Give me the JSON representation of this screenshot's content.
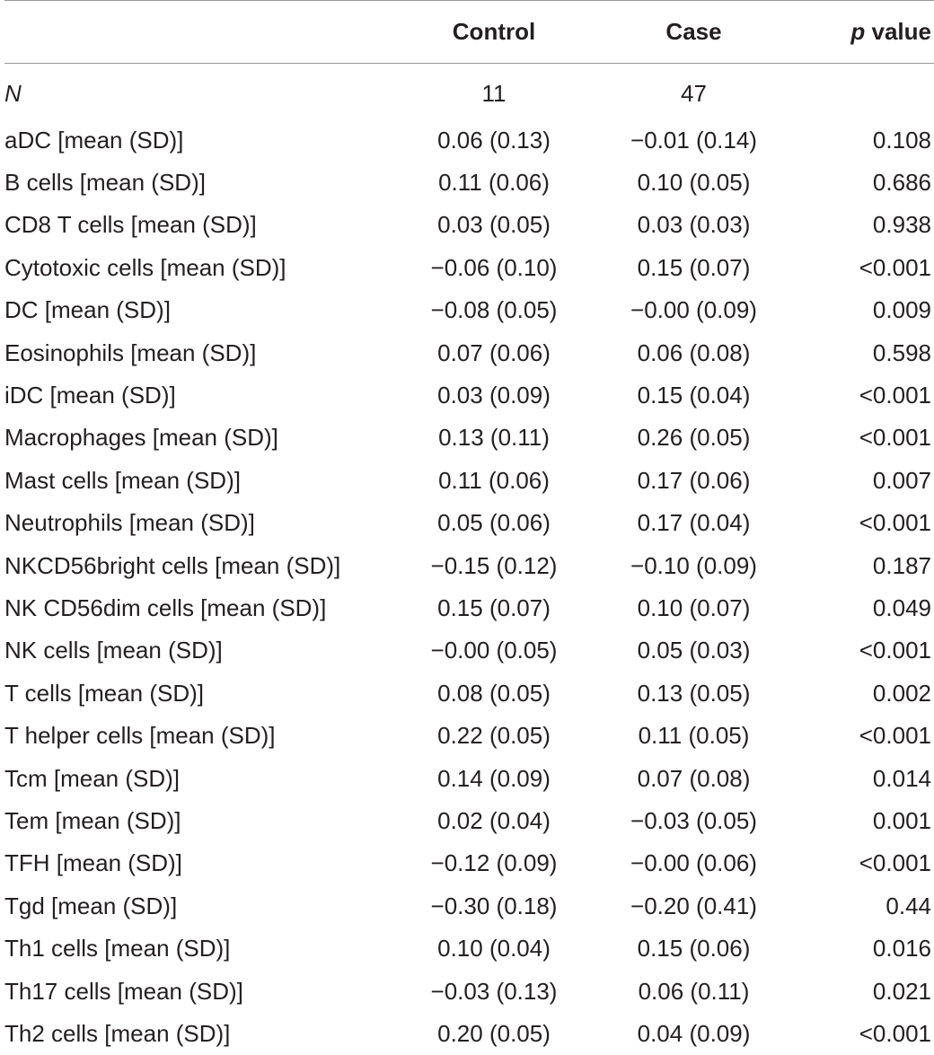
{
  "table": {
    "headers": {
      "name": "",
      "control": "Control",
      "case": "Case",
      "p_italic": "p",
      "p_rest": " value"
    },
    "n_row": {
      "label": "N",
      "control": "11",
      "case": "47",
      "p": ""
    },
    "rows": [
      {
        "label": "aDC [mean (SD)]",
        "control": "0.06 (0.13)",
        "case": "−0.01 (0.14)",
        "p": "0.108"
      },
      {
        "label": "B cells [mean (SD)]",
        "control": "0.11 (0.06)",
        "case": "0.10 (0.05)",
        "p": "0.686"
      },
      {
        "label": "CD8 T cells [mean (SD)]",
        "control": "0.03 (0.05)",
        "case": "0.03 (0.03)",
        "p": "0.938"
      },
      {
        "label": "Cytotoxic cells [mean (SD)]",
        "control": "−0.06 (0.10)",
        "case": "0.15 (0.07)",
        "p": "<0.001"
      },
      {
        "label": "DC [mean (SD)]",
        "control": "−0.08 (0.05)",
        "case": "−0.00 (0.09)",
        "p": "0.009"
      },
      {
        "label": "Eosinophils [mean (SD)]",
        "control": "0.07 (0.06)",
        "case": "0.06 (0.08)",
        "p": "0.598"
      },
      {
        "label": "iDC [mean (SD)]",
        "control": "0.03 (0.09)",
        "case": "0.15 (0.04)",
        "p": "<0.001"
      },
      {
        "label": "Macrophages [mean (SD)]",
        "control": "0.13 (0.11)",
        "case": "0.26 (0.05)",
        "p": "<0.001"
      },
      {
        "label": "Mast cells [mean (SD)]",
        "control": "0.11 (0.06)",
        "case": "0.17 (0.06)",
        "p": "0.007"
      },
      {
        "label": "Neutrophils [mean (SD)]",
        "control": "0.05 (0.06)",
        "case": "0.17 (0.04)",
        "p": "<0.001"
      },
      {
        "label": "NKCD56bright cells [mean (SD)]",
        "control": "−0.15 (0.12)",
        "case": "−0.10 (0.09)",
        "p": "0.187"
      },
      {
        "label": "NK CD56dim cells [mean (SD)]",
        "control": "0.15 (0.07)",
        "case": "0.10 (0.07)",
        "p": "0.049"
      },
      {
        "label": "NK cells [mean (SD)]",
        "control": "−0.00 (0.05)",
        "case": "0.05 (0.03)",
        "p": "<0.001"
      },
      {
        "label": "T cells [mean (SD)]",
        "control": "0.08 (0.05)",
        "case": "0.13 (0.05)",
        "p": "0.002"
      },
      {
        "label": "T helper cells [mean (SD)]",
        "control": "0.22 (0.05)",
        "case": "0.11 (0.05)",
        "p": "<0.001"
      },
      {
        "label": "Tcm [mean (SD)]",
        "control": "0.14 (0.09)",
        "case": "0.07 (0.08)",
        "p": "0.014"
      },
      {
        "label": "Tem [mean (SD)]",
        "control": "0.02 (0.04)",
        "case": "−0.03 (0.05)",
        "p": "0.001"
      },
      {
        "label": "TFH [mean (SD)]",
        "control": "−0.12 (0.09)",
        "case": "−0.00 (0.06)",
        "p": "<0.001"
      },
      {
        "label": "Tgd [mean (SD)]",
        "control": "−0.30 (0.18)",
        "case": "−0.20 (0.41)",
        "p": "0.44"
      },
      {
        "label": "Th1 cells [mean (SD)]",
        "control": "0.10 (0.04)",
        "case": "0.15 (0.06)",
        "p": "0.016"
      },
      {
        "label": "Th17 cells [mean (SD)]",
        "control": "−0.03 (0.13)",
        "case": "0.06 (0.11)",
        "p": "0.021"
      },
      {
        "label": "Th2 cells [mean (SD)]",
        "control": "0.20 (0.05)",
        "case": "0.04 (0.09)",
        "p": "<0.001"
      }
    ]
  }
}
